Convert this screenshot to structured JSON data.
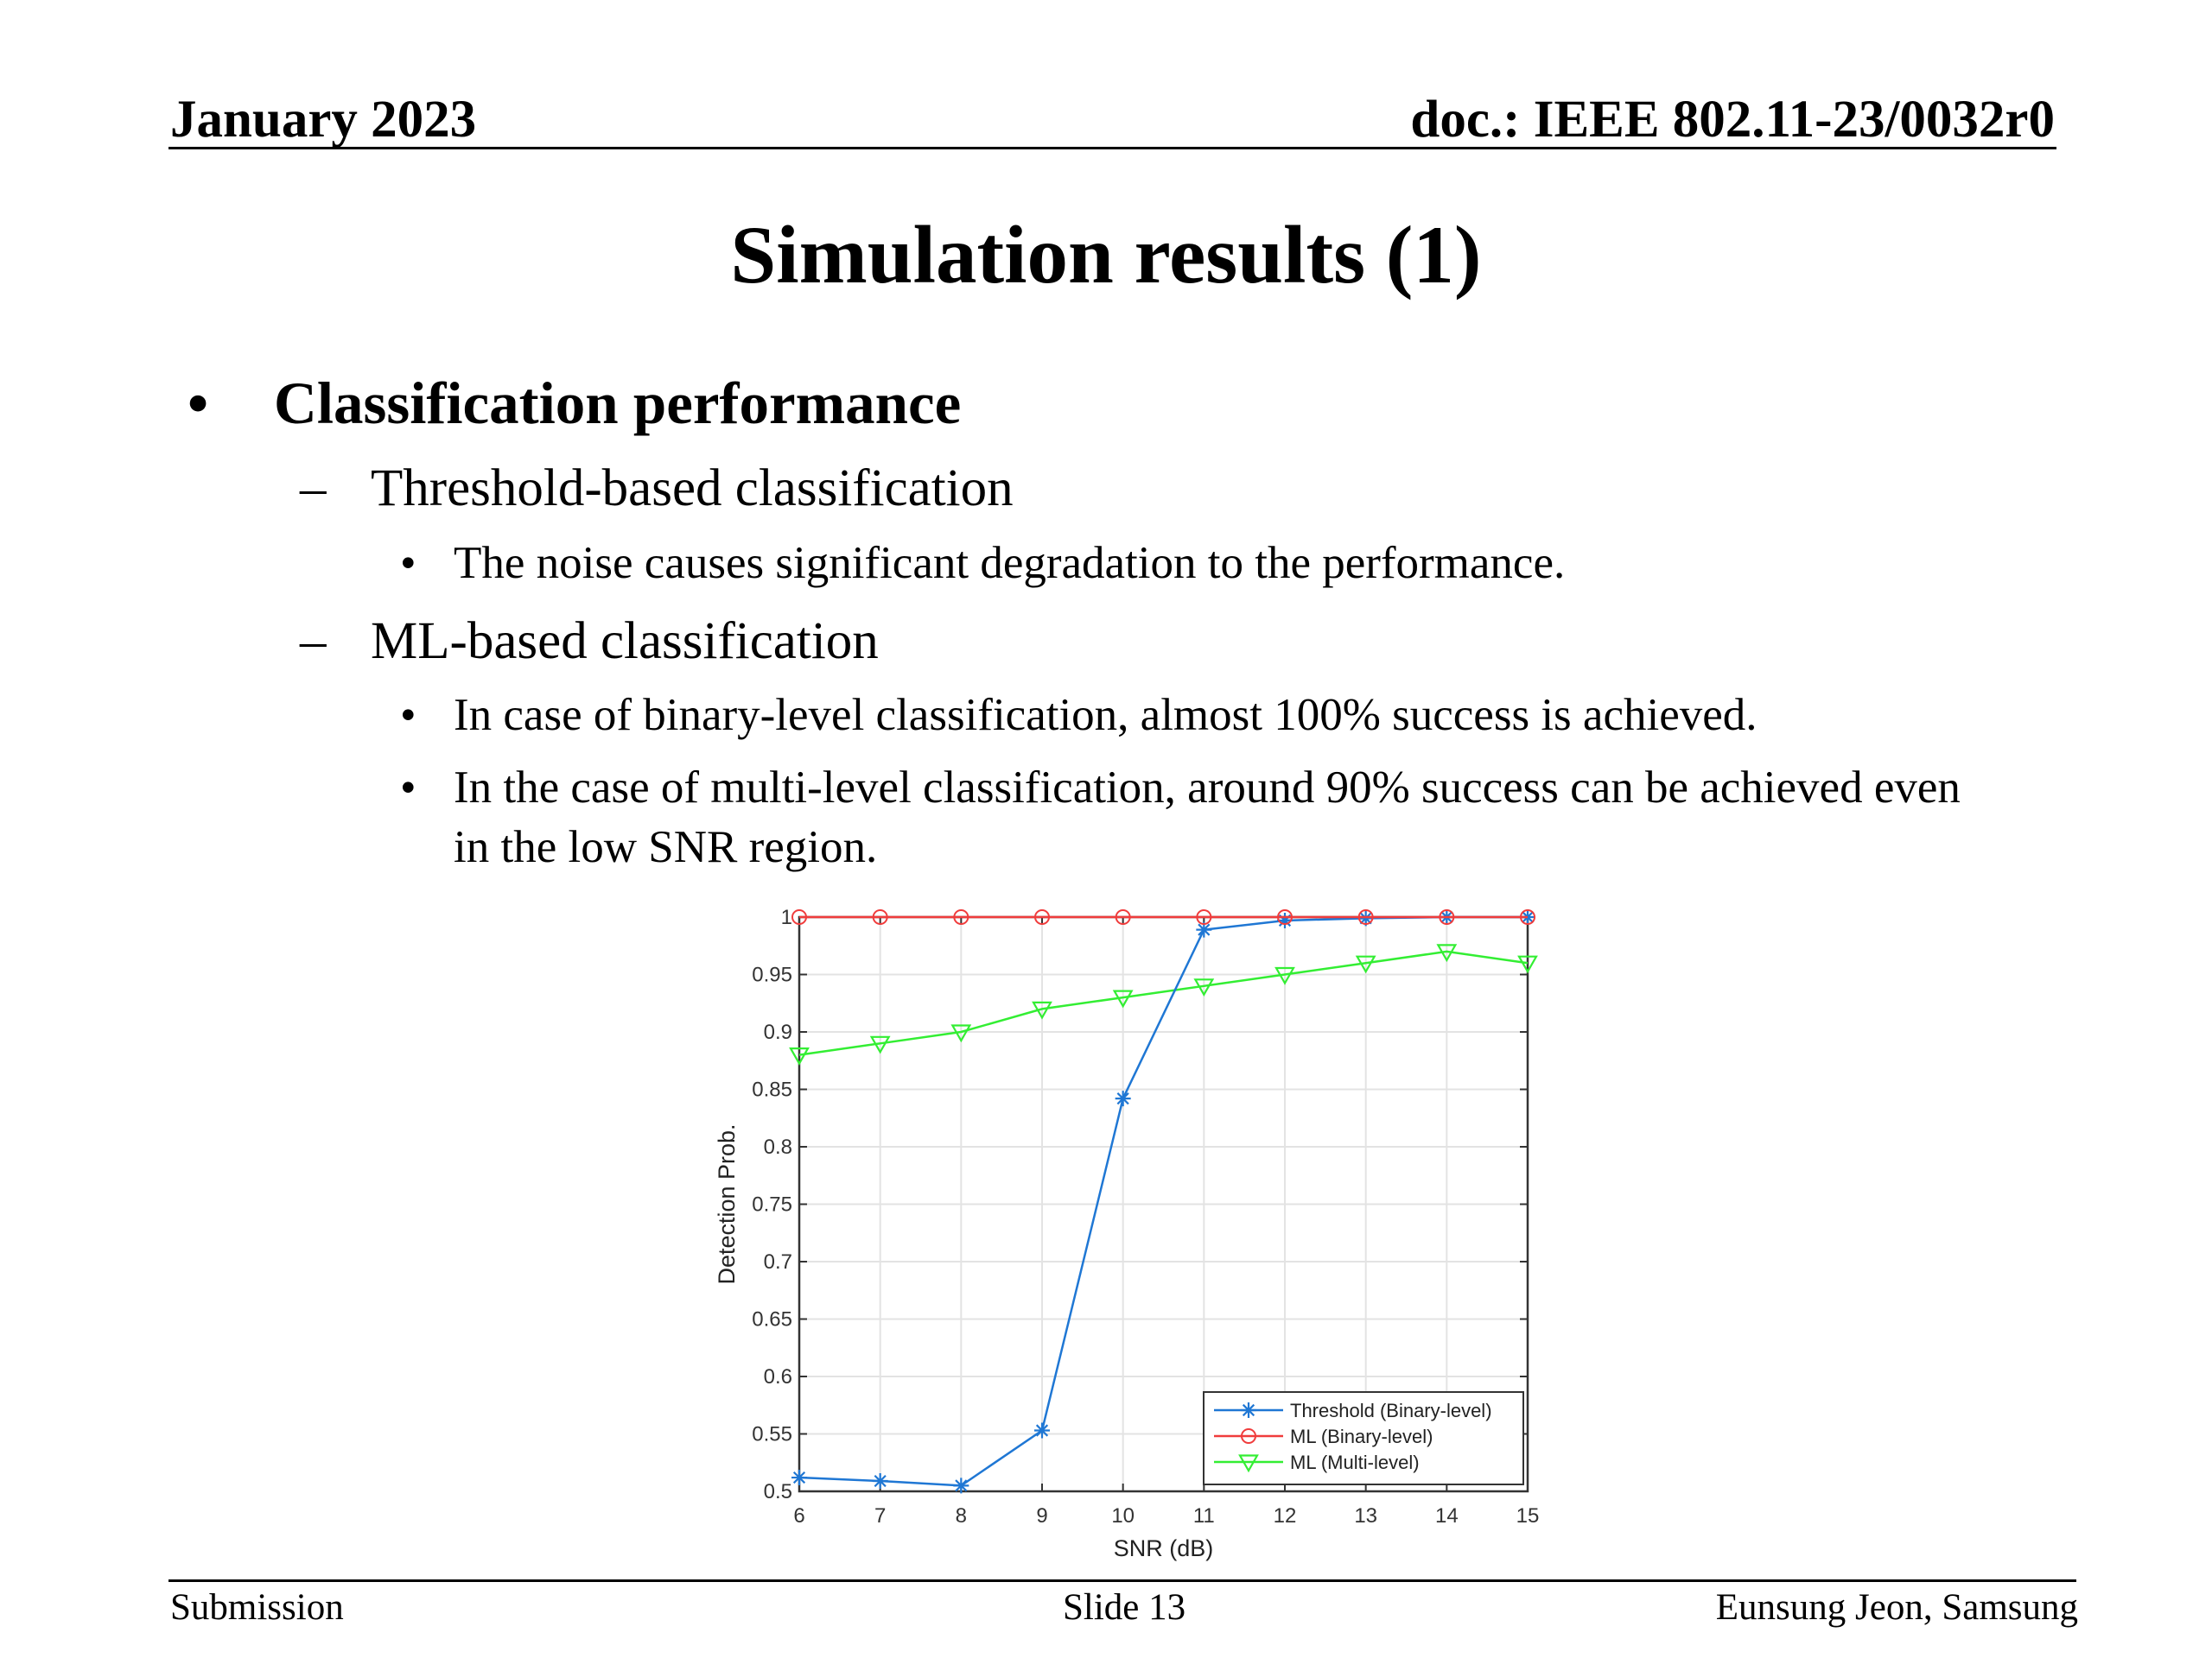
{
  "header": {
    "date": "January 2023",
    "doc_id": "doc.: IEEE 802.11-23/0032r0"
  },
  "title": "Simulation results (1)",
  "bullets": {
    "l1": "Classification performance",
    "sub1": {
      "label": "Threshold-based classification",
      "items": [
        "The noise causes significant degradation to the performance."
      ]
    },
    "sub2": {
      "label": "ML-based classification",
      "items": [
        "In case of binary-level classification, almost 100% success is achieved.",
        "In the case of multi-level classification, around 90% success can be achieved even in the low SNR region."
      ]
    }
  },
  "footer": {
    "left": "Submission",
    "center": "Slide 13",
    "right": "Eunsung Jeon, Samsung"
  },
  "chart_data": {
    "type": "line",
    "title": "",
    "xlabel": "SNR (dB)",
    "ylabel": "Detection Prob.",
    "x": [
      6,
      7,
      8,
      9,
      10,
      11,
      12,
      13,
      14,
      15
    ],
    "xlim": [
      6,
      15
    ],
    "ylim": [
      0.5,
      1
    ],
    "xticks": [
      6,
      7,
      8,
      9,
      10,
      11,
      12,
      13,
      14,
      15
    ],
    "yticks": [
      0.5,
      0.55,
      0.6,
      0.65,
      0.7,
      0.75,
      0.8,
      0.85,
      0.9,
      0.95,
      1
    ],
    "grid": true,
    "legend_position": "bottom-right",
    "series": [
      {
        "name": "Threshold (Binary-level)",
        "color": "#1f77d4",
        "marker": "asterisk",
        "values": [
          0.512,
          0.509,
          0.505,
          0.553,
          0.842,
          0.989,
          0.997,
          0.999,
          1.0,
          1.0
        ]
      },
      {
        "name": "ML (Binary-level)",
        "color": "#f03c3c",
        "marker": "circle",
        "values": [
          1,
          1,
          1,
          1,
          1,
          1,
          1,
          1,
          1,
          1
        ]
      },
      {
        "name": "ML (Multi-level)",
        "color": "#33ee33",
        "marker": "triangle-down",
        "values": [
          0.88,
          0.89,
          0.9,
          0.92,
          0.93,
          0.94,
          0.95,
          0.96,
          0.97,
          0.96
        ]
      }
    ]
  }
}
